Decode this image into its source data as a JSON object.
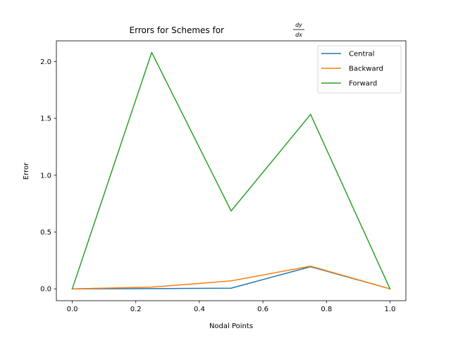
{
  "chart_data": {
    "type": "line",
    "title": "Errors for Schemes for",
    "title_math": {
      "numerator": "dy",
      "denominator": "dx"
    },
    "xlabel": "Nodal Points",
    "ylabel": "Error",
    "x": [
      0.0,
      0.25,
      0.5,
      0.75,
      1.0
    ],
    "xlim": [
      -0.05,
      1.05
    ],
    "ylim": [
      -0.104,
      2.182
    ],
    "xticks": [
      "0.0",
      "0.2",
      "0.4",
      "0.6",
      "0.8",
      "1.0"
    ],
    "yticks": [
      "0.0",
      "0.5",
      "1.0",
      "1.5",
      "2.0"
    ],
    "grid": false,
    "legend_position": "top-right",
    "series": [
      {
        "name": "Central",
        "color": "#1f77b4",
        "values": [
          0.0,
          0.002,
          0.006,
          0.195,
          0.0
        ]
      },
      {
        "name": "Backward",
        "color": "#ff7f0e",
        "values": [
          0.0,
          0.015,
          0.07,
          0.2,
          0.0
        ]
      },
      {
        "name": "Forward",
        "color": "#2ca02c",
        "values": [
          0.0,
          2.08,
          0.685,
          1.535,
          0.0
        ]
      }
    ]
  }
}
